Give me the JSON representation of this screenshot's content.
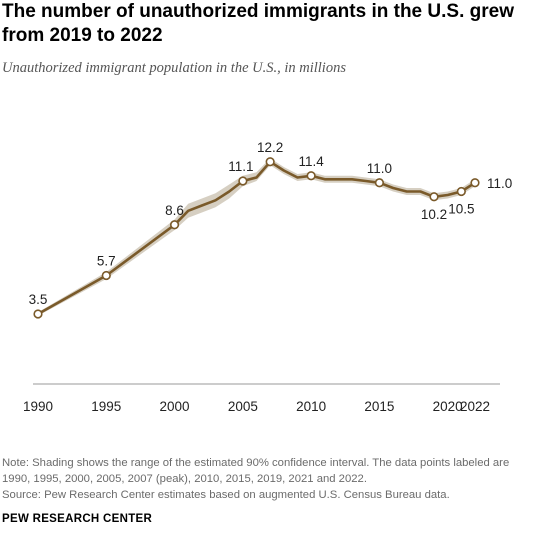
{
  "title": "The number of unauthorized immigrants in the U.S. grew from 2019 to 2022",
  "subtitle": "Unauthorized immigrant population in the U.S., in millions",
  "note": "Note: Shading shows the range of the estimated 90% confidence interval. The data points labeled are 1990, 1995, 2000, 2005, 2007 (peak), 2010, 2015, 2019, 2021 and 2022.",
  "source": "Source: Pew Research Center estimates based on augmented U.S. Census Bureau data.",
  "brand": "PEW RESEARCH CENTER",
  "colors": {
    "line": "#7a5a2a",
    "band": "#d6cfc2",
    "marker_fill": "#ffffff",
    "axis": "#999999"
  },
  "chart_data": {
    "type": "line",
    "title": "The number of unauthorized immigrants in the U.S. grew from 2019 to 2022",
    "subtitle": "Unauthorized immigrant population in the U.S., in millions",
    "xlabel": "",
    "ylabel": "",
    "x_ticks": [
      1990,
      1995,
      2000,
      2005,
      2010,
      2015,
      2020,
      2022
    ],
    "x_tick_labels": [
      "1990",
      "1995",
      "2000",
      "2005",
      "2010",
      "2015",
      "2020",
      "2022"
    ],
    "xlim": [
      1990,
      2022
    ],
    "ylim": [
      0,
      14
    ],
    "grid": false,
    "series": [
      {
        "x": [
          1990,
          1995,
          2000,
          2001,
          2002,
          2003,
          2004,
          2005,
          2006,
          2007,
          2008,
          2009,
          2010,
          2011,
          2012,
          2013,
          2014,
          2015,
          2016,
          2017,
          2018,
          2019,
          2020,
          2021,
          2022
        ],
        "values": [
          3.5,
          5.7,
          8.6,
          9.4,
          9.7,
          10.0,
          10.5,
          11.1,
          11.3,
          12.2,
          11.7,
          11.3,
          11.4,
          11.2,
          11.2,
          11.2,
          11.1,
          11.0,
          10.7,
          10.5,
          10.5,
          10.2,
          10.3,
          10.5,
          11.0
        ],
        "ci_low": [
          3.4,
          5.5,
          8.3,
          9.0,
          9.3,
          9.6,
          10.1,
          10.8,
          11.1,
          12.0,
          11.5,
          11.1,
          11.2,
          11.0,
          11.0,
          11.0,
          10.9,
          10.8,
          10.5,
          10.3,
          10.3,
          10.0,
          10.1,
          10.3,
          10.8
        ],
        "ci_high": [
          3.6,
          5.9,
          8.9,
          9.8,
          10.1,
          10.4,
          10.9,
          11.4,
          11.6,
          12.4,
          11.9,
          11.5,
          11.6,
          11.4,
          11.4,
          11.4,
          11.3,
          11.2,
          10.9,
          10.7,
          10.7,
          10.4,
          10.5,
          10.7,
          11.2
        ]
      }
    ],
    "labeled_points": [
      {
        "x": 1990,
        "y": 3.5,
        "label": "3.5",
        "position": "above"
      },
      {
        "x": 1995,
        "y": 5.7,
        "label": "5.7",
        "position": "above"
      },
      {
        "x": 2000,
        "y": 8.6,
        "label": "8.6",
        "position": "above"
      },
      {
        "x": 2005,
        "y": 11.1,
        "label": "11.1",
        "position": "above"
      },
      {
        "x": 2007,
        "y": 12.2,
        "label": "12.2",
        "position": "above"
      },
      {
        "x": 2010,
        "y": 11.4,
        "label": "11.4",
        "position": "above"
      },
      {
        "x": 2015,
        "y": 11.0,
        "label": "11.0",
        "position": "above"
      },
      {
        "x": 2019,
        "y": 10.2,
        "label": "10.2",
        "position": "below"
      },
      {
        "x": 2021,
        "y": 10.5,
        "label": "10.5",
        "position": "below"
      },
      {
        "x": 2022,
        "y": 11.0,
        "label": "11.0",
        "position": "right"
      }
    ]
  }
}
